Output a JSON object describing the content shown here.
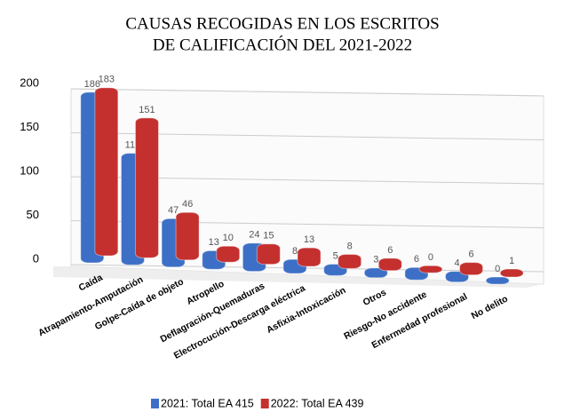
{
  "chart_data": {
    "type": "bar",
    "title": [
      "CAUSAS RECOGIDAS EN LOS ESCRITOS",
      "DE CALIFICACIÓN DEL 2021-2022"
    ],
    "categories": [
      "Caída",
      "Atrapamiento-Amputación",
      "Golpe-Caída de objeto",
      "Atropello",
      "Deflagración-Quemaduras",
      "Electrocución-Descarga eléctrica",
      "Asfixia-Intoxicación",
      "Otros",
      "Riesgo-No accidente",
      "Enfermedad profesional",
      "No delito"
    ],
    "series": [
      {
        "name": "2021: Total EA 415",
        "color": "#3d6fc6",
        "values": [
          186,
          119,
          47,
          13,
          24,
          8,
          5,
          3,
          6,
          4,
          0
        ]
      },
      {
        "name": "2022: Total EA 439",
        "color": "#c4302e",
        "values": [
          183,
          151,
          46,
          10,
          15,
          13,
          8,
          6,
          0,
          6,
          1
        ]
      }
    ],
    "ylim": [
      0,
      200
    ],
    "yticks": [
      0,
      50,
      100,
      150,
      200
    ],
    "grid": true,
    "legend": "bottom"
  }
}
